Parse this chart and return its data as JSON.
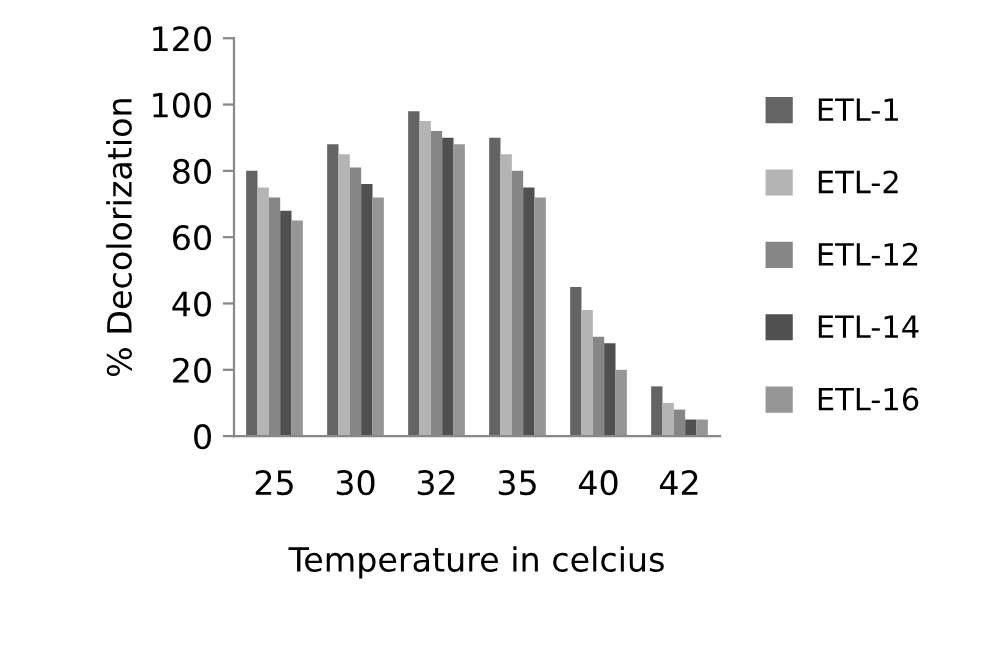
{
  "chart_data": {
    "type": "bar",
    "xlabel": "Temperature in celcius",
    "ylabel": "% Decolorization",
    "categories": [
      "25",
      "30",
      "32",
      "35",
      "40",
      "42"
    ],
    "series": [
      {
        "name": "ETL-1",
        "color": "#646464",
        "values": [
          80,
          88,
          98,
          90,
          45,
          15
        ]
      },
      {
        "name": "ETL-2",
        "color": "#b4b4b4",
        "values": [
          75,
          85,
          95,
          85,
          38,
          10
        ]
      },
      {
        "name": "ETL-12",
        "color": "#868686",
        "values": [
          72,
          81,
          92,
          80,
          30,
          8
        ]
      },
      {
        "name": "ETL-14",
        "color": "#505050",
        "values": [
          68,
          76,
          90,
          75,
          28,
          5
        ]
      },
      {
        "name": "ETL-16",
        "color": "#969696",
        "values": [
          65,
          72,
          88,
          72,
          20,
          5
        ]
      }
    ],
    "ylim": [
      0,
      120
    ],
    "yticks": [
      0,
      20,
      40,
      60,
      80,
      100,
      120
    ],
    "grid": false,
    "legend": "right"
  }
}
